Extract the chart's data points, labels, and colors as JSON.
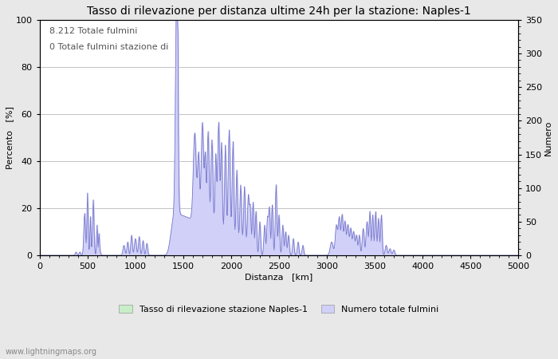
{
  "title": "Tasso di rilevazione per distanza ultime 24h per la stazione: Naples-1",
  "xlabel": "Distanza   [km]",
  "ylabel_left": "Percento   [%]",
  "ylabel_right": "Numero",
  "annotation_line1": "8.212 Totale fulmini",
  "annotation_line2": "0 Totale fulmini stazione di",
  "xlim": [
    0,
    5000
  ],
  "ylim_left": [
    0,
    100
  ],
  "ylim_right": [
    0,
    350
  ],
  "xticks": [
    0,
    500,
    1000,
    1500,
    2000,
    2500,
    3000,
    3500,
    4000,
    4500,
    5000
  ],
  "yticks_left": [
    0,
    20,
    40,
    60,
    80,
    100
  ],
  "yticks_right": [
    0,
    50,
    100,
    150,
    200,
    250,
    300,
    350
  ],
  "legend_label_green": "Tasso di rilevazione stazione Naples-1",
  "legend_label_blue": "Numero totale fulmini",
  "fill_color_blue": "#d0d0f8",
  "fill_color_green": "#c8eec8",
  "line_color": "#7777cc",
  "background_color": "#e8e8e8",
  "plot_bg_color": "#ffffff",
  "watermark": "www.lightningmaps.org",
  "title_fontsize": 10,
  "axis_fontsize": 8,
  "tick_fontsize": 8,
  "annotation_fontsize": 8
}
